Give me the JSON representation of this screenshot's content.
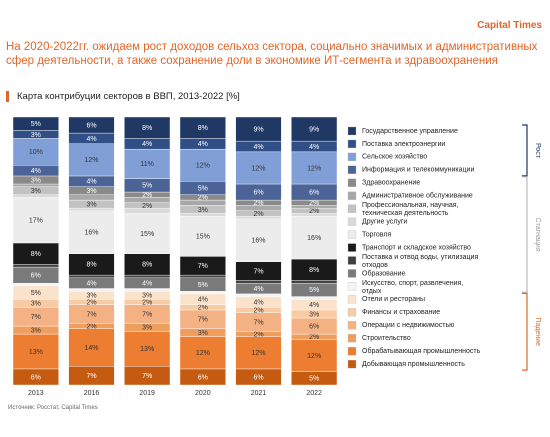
{
  "brand": "Capital Times",
  "chart_data": {
    "type": "stacked_bar",
    "title": "На 2020-2022гг. ожидаем рост доходов сельхоз сектора, социально значимых и административных сфер деятельности, а также сохранение доли в экономике ИТ-сегмента и здравоохранения",
    "subtitle": "Карта контрибуции секторов в ВВП, 2013-2022 [%]",
    "source": "Источник: Росстат, Capital Times",
    "groups": [
      "Рост",
      "Стагнация",
      "Падение"
    ],
    "categories": [
      "2013",
      "2016",
      "2019",
      "2020",
      "2021",
      "2022"
    ],
    "ylim": [
      0,
      100
    ],
    "series": [
      {
        "name": "Государственное управление",
        "color": "#1f3864",
        "values": [
          5,
          6,
          8,
          8,
          9,
          9
        ],
        "value_labels": [
          "5%",
          "6%",
          "8%",
          "8%",
          "9%",
          "9%"
        ]
      },
      {
        "name": "Поставка электроэнергии",
        "color": "#2f4f86",
        "values": [
          3,
          4,
          4,
          4,
          4,
          4
        ],
        "value_labels": [
          "3%",
          "4%",
          "4%",
          "4%",
          "4%",
          "4%"
        ]
      },
      {
        "name": "Сельское хозяйство",
        "color": "#809fd6",
        "values": [
          10,
          12,
          11,
          12,
          12,
          12
        ],
        "value_labels": [
          "10%",
          "12%",
          "11%",
          "12%",
          "12%",
          "12%"
        ]
      },
      {
        "name": "Информация и телекоммуникации",
        "color": "#4b6396",
        "values": [
          4,
          4,
          5,
          5,
          6,
          6
        ],
        "value_labels": [
          "4%",
          "4%",
          "5%",
          "5%",
          "6%",
          "6%"
        ]
      },
      {
        "name": "Здравоохранение",
        "color": "#8a8a8a",
        "values": [
          3,
          3,
          2,
          2,
          2,
          2
        ],
        "value_labels": [
          "3%",
          "3%",
          "2%",
          "2%",
          "2%",
          "2%"
        ]
      },
      {
        "name": "Административное обслуживание",
        "color": "#a8a8a8",
        "values": [
          1,
          2,
          2,
          2,
          2,
          1
        ]
      },
      {
        "name": "Профессиональная, научная, техническая деятельность",
        "color": "#c2c2c2",
        "values": [
          3,
          3,
          2,
          3,
          2,
          2
        ],
        "value_labels": [
          "3%",
          "3%",
          "2%",
          "3%",
          "2%",
          "2%"
        ]
      },
      {
        "name": "Другие услуги",
        "color": "#dadada",
        "values": [
          1,
          1,
          2,
          1,
          1,
          1
        ]
      },
      {
        "name": "Торговля",
        "color": "#ececec",
        "values": [
          17,
          16,
          15,
          15,
          16,
          16
        ],
        "value_labels": [
          "17%",
          "16%",
          "15%",
          "15%",
          "16%",
          "16%"
        ]
      },
      {
        "name": "Транспорт и складское хозяйство",
        "color": "#1a1a1a",
        "values": [
          8,
          8,
          8,
          7,
          7,
          8
        ],
        "value_labels": [
          "8%",
          "8%",
          "8%",
          "7%",
          "7%",
          "8%"
        ]
      },
      {
        "name": "Поставка и отвод воды, утилизация отходов",
        "color": "#3f3f3f",
        "values": [
          1,
          1,
          1,
          1,
          1,
          1
        ]
      },
      {
        "name": "Образование",
        "color": "#7a7a7a",
        "values": [
          6,
          4,
          4,
          5,
          4,
          5
        ],
        "value_labels": [
          "6%",
          "4%",
          "4%",
          "5%",
          "4%",
          "5%"
        ]
      },
      {
        "name": "Искусство, спорт, развлечения, отдых",
        "color": "#f4f4f4",
        "values": [
          1,
          1,
          1,
          1,
          1,
          1
        ]
      },
      {
        "name": "Отели и рестораны",
        "color": "#fbe2cb",
        "values": [
          5,
          3,
          3,
          4,
          4,
          4
        ],
        "value_labels": [
          "5%",
          "3%",
          "3%",
          "4%",
          "4%",
          "4%"
        ]
      },
      {
        "name": "Финансы и страхование",
        "color": "#f8cba4",
        "values": [
          3,
          2,
          2,
          2,
          2,
          3
        ],
        "value_labels": [
          "3%",
          "2%",
          "2%",
          "2%",
          "2%",
          "3%"
        ]
      },
      {
        "name": "Операции с недвижимостью",
        "color": "#f4b183",
        "values": [
          7,
          7,
          7,
          7,
          7,
          6
        ],
        "value_labels": [
          "7%",
          "7%",
          "7%",
          "7%",
          "7%",
          "6%"
        ]
      },
      {
        "name": "Строительство",
        "color": "#f09e5e",
        "values": [
          3,
          2,
          3,
          3,
          2,
          2
        ],
        "value_labels": [
          "3%",
          "2%",
          "3%",
          "3%",
          "2%",
          "2%"
        ]
      },
      {
        "name": "Обрабатывающая промышленность",
        "color": "#ed7d31",
        "values": [
          13,
          14,
          13,
          12,
          12,
          12
        ],
        "value_labels": [
          "13%",
          "14%",
          "13%",
          "12%",
          "12%",
          "12%"
        ]
      },
      {
        "name": "Добывающая промышленность",
        "color": "#c55a11",
        "values": [
          6,
          7,
          7,
          6,
          6,
          5
        ],
        "value_labels": [
          "6%",
          "7%",
          "7%",
          "6%",
          "6%",
          "5%"
        ]
      }
    ]
  }
}
